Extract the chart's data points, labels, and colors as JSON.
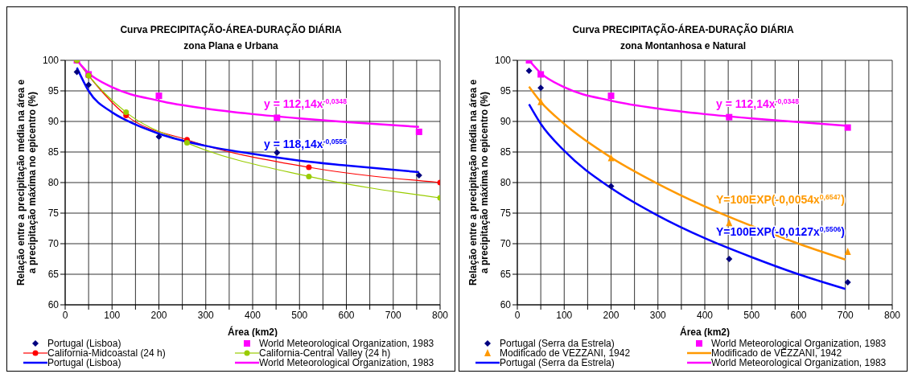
{
  "chart_data": [
    {
      "type": "scatter",
      "title": "Curva PRECIPITAÇÃO-ÁREA-DURAÇÃO DIÁRIA",
      "subtitle": "zona Plana e Urbana",
      "xlabel": "Área (km2)",
      "ylabel": "Relação entre a precipitação média na área e a precipitação máxima no epicentro (%)",
      "xlim": [
        0,
        800
      ],
      "ylim": [
        60,
        100
      ],
      "xticks": [
        0,
        {
          "value": 50,
          "label": null
        },
        100,
        {
          "value": 150,
          "label": null
        },
        200,
        {
          "value": 250,
          "label": null
        },
        300,
        {
          "value": 350,
          "label": null
        },
        400,
        {
          "value": 450,
          "label": null
        },
        500,
        {
          "value": 550,
          "label": null
        },
        600,
        {
          "value": 650,
          "label": null
        },
        700,
        {
          "value": 750,
          "label": null
        },
        800
      ],
      "yticks": [
        60,
        65,
        70,
        75,
        80,
        85,
        90,
        95,
        100
      ],
      "grid": true,
      "legend": "bottom",
      "series": [
        {
          "name": "Portugal (Lisboa)",
          "marker": "diamond",
          "color": "#000080",
          "x": [
            25,
            50,
            200,
            452,
            755
          ],
          "values": [
            98.1,
            96,
            87.5,
            84.9,
            81.2
          ]
        },
        {
          "name": "World Meteorological Organization, 1983",
          "marker": "square",
          "color": "#ff00ff",
          "x": [
            25,
            50,
            200,
            452,
            755
          ],
          "values": [
            100,
            97.7,
            94.2,
            90.6,
            88.3
          ]
        },
        {
          "name": "California-Midcoastal (24 h)",
          "type": "line",
          "marker": "circle",
          "color": "#ff0000",
          "x": [
            25,
            50,
            130,
            260,
            520,
            800
          ],
          "values": [
            100,
            97.5,
            91,
            87,
            82.5,
            80
          ]
        },
        {
          "name": "California-Central Valley (24 h)",
          "type": "line",
          "marker": "circle",
          "color": "#99cc00",
          "x": [
            25,
            50,
            130,
            260,
            520,
            800
          ],
          "values": [
            100,
            97.5,
            91.5,
            86.5,
            81,
            77.5
          ]
        },
        {
          "name": "Portugal (Lisboa)",
          "type": "line",
          "marker": "none",
          "color": "#0000ff",
          "x": [
            25,
            50,
            100,
            130,
            200,
            300,
            400,
            500,
            600,
            755
          ],
          "values": [
            98.8,
            95,
            91.5,
            90.2,
            88,
            86,
            84.7,
            83.6,
            82.8,
            81.7
          ]
        },
        {
          "name": "World Meteorological Organization, 1983",
          "type": "line",
          "marker": "none",
          "color": "#ff00ff",
          "x": [
            25,
            50,
            100,
            200,
            300,
            400,
            500,
            600,
            755
          ],
          "values": [
            100,
            97.9,
            95.6,
            93.4,
            92.1,
            91.2,
            90.5,
            89.9,
            89.1
          ]
        }
      ],
      "annotations": [
        "y = 118,14x$^{-0,0556}$",
        "y = 112,14x$^{-0,0348}$"
      ]
    },
    {
      "type": "scatter",
      "title": "Curva PRECIPITAÇÃO-ÁREA-DURAÇÃO DIÁRIA",
      "subtitle": "zona Montanhosa e Natural",
      "xlabel": "Área (km2)",
      "ylabel": "Relação entre a precipitação média na área e a precipitação máxima no epicentro (%)",
      "xlim": [
        0,
        800
      ],
      "ylim": [
        60,
        100
      ],
      "xticks": [
        0,
        {
          "value": 50,
          "label": null
        },
        100,
        {
          "value": 150,
          "label": null
        },
        200,
        {
          "value": 250,
          "label": null
        },
        300,
        {
          "value": 350,
          "label": null
        },
        400,
        {
          "value": 450,
          "label": null
        },
        500,
        {
          "value": 550,
          "label": null
        },
        600,
        {
          "value": 650,
          "label": null
        },
        700,
        {
          "value": 750,
          "label": null
        },
        800
      ],
      "yticks": [
        60,
        65,
        70,
        75,
        80,
        85,
        90,
        95,
        100
      ],
      "grid": true,
      "legend": "bottom",
      "series": [
        {
          "name": "Portugal (Serra da Estrela)",
          "marker": "diamond",
          "color": "#000080",
          "x": [
            25,
            50,
            200,
            452,
            705
          ],
          "values": [
            98.3,
            95.5,
            79.4,
            67.5,
            63.7
          ]
        },
        {
          "name": "World Meteorological Organization, 1983",
          "marker": "square",
          "color": "#ff00ff",
          "x": [
            25,
            50,
            200,
            452,
            705
          ],
          "values": [
            100,
            97.7,
            94.2,
            90.7,
            89
          ]
        },
        {
          "name": "Modificado de VEZZANI, 1942",
          "marker": "triangle",
          "color": "#ff9900",
          "x": [
            50,
            200,
            452,
            705
          ],
          "values": [
            93.2,
            84,
            73.4,
            68.7
          ]
        },
        {
          "name": "Modificado de VEZZANI, 1942",
          "type": "line",
          "marker": "none",
          "color": "#ff9900",
          "x": [
            25,
            50,
            100,
            200,
            300,
            400,
            500,
            600,
            700
          ],
          "values": [
            95.7,
            93.2,
            89.6,
            84.1,
            79.8,
            76.1,
            72.9,
            70,
            67.4
          ]
        },
        {
          "name": "Portugal (Serra da Estrela)",
          "type": "line",
          "marker": "none",
          "color": "#0000ff",
          "x": [
            25,
            50,
            100,
            200,
            300,
            400,
            500,
            600,
            700
          ],
          "values": [
            92.8,
            89.6,
            85.2,
            79.1,
            74.6,
            70.9,
            67.8,
            65,
            62.6
          ]
        },
        {
          "name": "World Meteorological Organization, 1983",
          "type": "line",
          "marker": "none",
          "color": "#ff00ff",
          "x": [
            25,
            50,
            100,
            200,
            300,
            400,
            500,
            600,
            700
          ],
          "values": [
            100,
            97.9,
            95.6,
            93.4,
            92.1,
            91.2,
            90.5,
            89.9,
            89.3
          ]
        }
      ],
      "annotations": [
        "Y=100EXP(-0,0054x$^{0,6547}$)",
        "Y=100EXP(-0,0127x$^{0,5506}$)",
        "y = 112,14x$^{-0,0348}$"
      ]
    }
  ]
}
